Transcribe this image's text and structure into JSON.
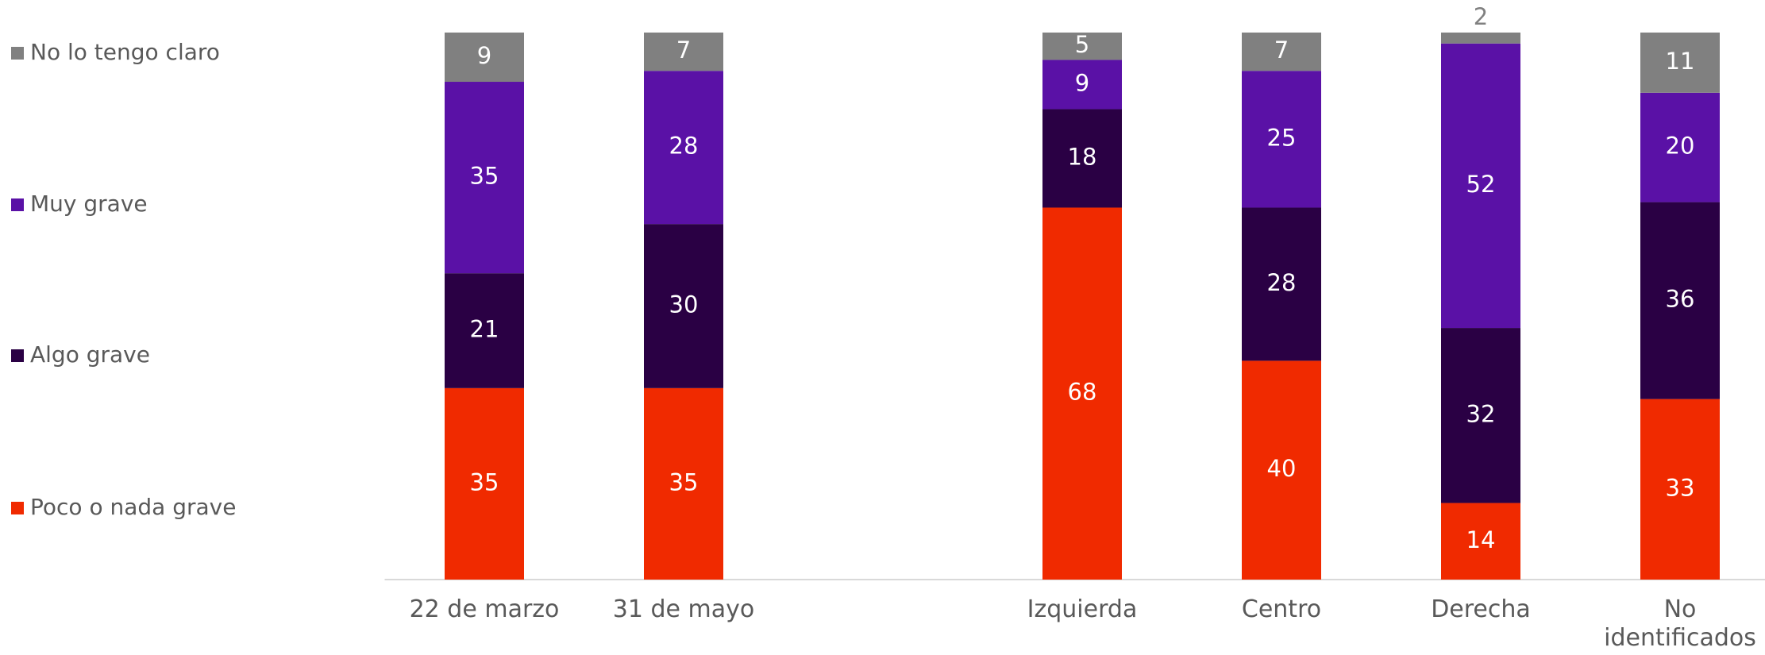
{
  "chart_data": {
    "type": "bar",
    "stacked": true,
    "categories": [
      "22 de marzo",
      "31 de mayo",
      null,
      "Izquierda",
      "Centro",
      "Derecha",
      "No identificados"
    ],
    "series": [
      {
        "name": "Poco o nada grave",
        "color": "#f02a00",
        "values": [
          35,
          35,
          null,
          68,
          40,
          14,
          33
        ]
      },
      {
        "name": "Algo grave",
        "color": "#2a0044",
        "values": [
          21,
          30,
          null,
          18,
          28,
          32,
          36
        ]
      },
      {
        "name": "Muy grave",
        "color": "#5a11a6",
        "values": [
          35,
          28,
          null,
          9,
          25,
          52,
          20
        ]
      },
      {
        "name": "No lo tengo claro",
        "color": "#808080",
        "values": [
          9,
          7,
          null,
          5,
          7,
          2,
          11
        ]
      }
    ],
    "ylim": [
      0,
      100
    ],
    "legend": "left"
  }
}
